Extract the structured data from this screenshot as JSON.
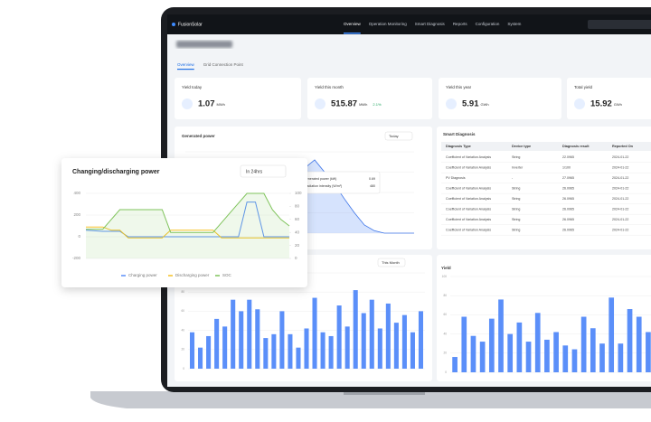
{
  "nav": {
    "brand": "FusionSolar",
    "items": [
      "Overview",
      "Operation Monitoring",
      "Smart Diagnosis",
      "Reports",
      "Configuration",
      "System"
    ]
  },
  "tabs": [
    "Overview",
    "Grid Connection Point"
  ],
  "kpis": [
    {
      "label": "Yield today",
      "value": "1.07",
      "unit": "MWh"
    },
    {
      "label": "Yield this month",
      "value": "515.87",
      "unit": "MWh",
      "change": "2.1%"
    },
    {
      "label": "Yield this year",
      "value": "5.91",
      "unit": "GWh"
    },
    {
      "label": "Total yield",
      "value": "15.92",
      "unit": "GWh"
    }
  ],
  "generated_power": {
    "title": "Generated power",
    "period": "Today",
    "values": [
      0,
      0,
      0,
      0,
      0,
      0,
      0.02,
      0.08,
      0.2,
      0.38,
      0.55,
      0.68,
      0.8,
      0.9,
      0.75,
      0.6,
      0.42,
      0.25,
      0.1,
      0.03,
      0,
      0,
      0,
      0
    ],
    "ylim": [
      0,
      1
    ],
    "tooltip": [
      {
        "label": "Generated power (kW)",
        "value": "0.69"
      },
      {
        "label": "Irradiation intensity (W/m²)",
        "value": "480"
      }
    ]
  },
  "smart_diagnosis": {
    "title": "Smart Diagnosis",
    "columns": [
      "Diagnosis Type",
      "Device type",
      "Diagnosis result",
      "Reported On"
    ],
    "rows": [
      [
        "Coefficient of Variation Analysis",
        "String",
        "22.0965",
        "2024-01-22"
      ],
      [
        "Coefficient of Variation Analysis",
        "Inverter",
        "1/100",
        "2024-01-22"
      ],
      [
        "PV Diagnosis",
        "-",
        "27.0965",
        "2024-01-22"
      ],
      [
        "Coefficient of Variation Analysis",
        "String",
        "26.0965",
        "2024-01-22"
      ],
      [
        "Coefficient of Variation Analysis",
        "String",
        "26.0965",
        "2024-01-22"
      ],
      [
        "Coefficient of Variation Analysis",
        "String",
        "26.0965",
        "2024-01-22"
      ],
      [
        "Coefficient of Variation Analysis",
        "String",
        "26.0965",
        "2024-01-22"
      ],
      [
        "Coefficient of Variation Analysis",
        "String",
        "26.0965",
        "2024-01-22"
      ]
    ]
  },
  "monthly": {
    "period": "This Month",
    "color": "#5b8ff9",
    "values": [
      38,
      22,
      34,
      52,
      44,
      72,
      60,
      72,
      62,
      32,
      36,
      60,
      36,
      22,
      42,
      74,
      38,
      34,
      66,
      44,
      82,
      58,
      72,
      42,
      68,
      48,
      56,
      38,
      60
    ],
    "ylim": [
      0,
      100
    ],
    "yticks": [
      0,
      20,
      40,
      60,
      80,
      100
    ]
  },
  "yield": {
    "title": "Yield",
    "color": "#5b8ff9",
    "values": [
      16,
      58,
      38,
      32,
      56,
      76,
      40,
      52,
      32,
      62,
      34,
      42,
      28,
      24,
      58,
      46,
      30,
      78,
      30,
      66,
      58,
      42
    ],
    "ylim": [
      0,
      100
    ],
    "yticks": [
      0,
      20,
      40,
      60,
      80,
      100
    ]
  },
  "storage": {
    "title": "Changing/discharging power",
    "period": "In 24hrs",
    "ylim": [
      -200,
      400
    ],
    "yticks": [
      -200,
      0,
      200,
      400
    ],
    "y2lim": [
      0,
      100
    ],
    "y2ticks": [
      0,
      20,
      40,
      60,
      80,
      100
    ],
    "series": [
      {
        "name": "Charging power",
        "color": "#5b8ff9",
        "values": [
          60,
          55,
          50,
          50,
          50,
          0,
          0,
          0,
          0,
          0,
          0,
          0,
          0,
          0,
          0,
          0,
          0,
          0,
          0,
          320,
          320,
          0,
          0,
          0,
          0
        ]
      },
      {
        "name": "Discharging power",
        "color": "#f6c022",
        "values": [
          90,
          90,
          90,
          60,
          60,
          -10,
          -10,
          -10,
          -10,
          -10,
          60,
          60,
          60,
          60,
          60,
          60,
          -10,
          -10,
          -10,
          -10,
          -10,
          -10,
          -10,
          -10,
          -10
        ]
      },
      {
        "name": "SOC",
        "color": "#7fc35b",
        "axis": "y2",
        "values": [
          45,
          45,
          45,
          60,
          75,
          75,
          75,
          75,
          75,
          75,
          40,
          40,
          40,
          40,
          40,
          40,
          55,
          70,
          85,
          100,
          100,
          100,
          75,
          60,
          50
        ]
      }
    ]
  }
}
